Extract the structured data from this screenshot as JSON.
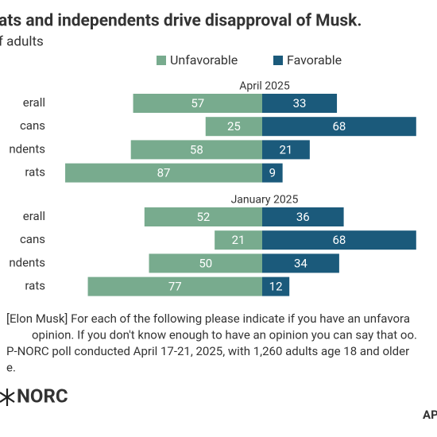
{
  "chart_data": {
    "type": "diverging_bar",
    "title": "ats and independents drive disapproval of Musk.",
    "subtitle": "f adults",
    "legend": [
      "Unfavorable",
      "Favorable"
    ],
    "colors": {
      "unfavorable": "#78ab8e",
      "favorable": "#1b5a7b"
    },
    "panels": [
      {
        "name": "April 2025",
        "categories": [
          "erall",
          "cans",
          "ndents",
          "rats"
        ],
        "unfavorable": [
          57,
          25,
          58,
          87
        ],
        "favorable": [
          33,
          68,
          21,
          9
        ]
      },
      {
        "name": "January 2025",
        "categories": [
          "erall",
          "cans",
          "ndents",
          "rats"
        ],
        "unfavorable": [
          52,
          21,
          50,
          77
        ],
        "favorable": [
          36,
          68,
          34,
          12
        ]
      }
    ],
    "notes": [
      "[Elon Musk] For each of the following please indicate if you have an unfavora",
      "opinion. If you don't know enough to have an opinion you can say that oo.",
      "P-NORC poll conducted April 17-21, 2025, with 1,260 adults age 18 and older",
      "e."
    ],
    "logo": "NORC",
    "corner": "AP"
  }
}
